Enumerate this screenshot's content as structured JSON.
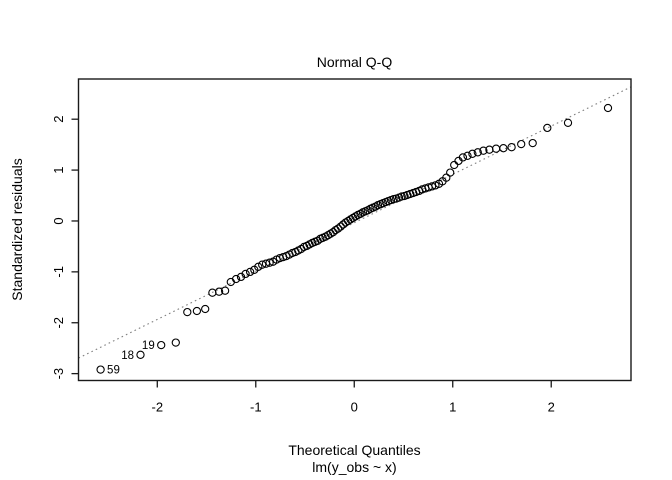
{
  "chart_data": {
    "type": "scatter",
    "title": "Normal Q-Q",
    "xlabel": "Theoretical Quantiles",
    "xlabel_sub": "lm(y_obs ~ x)",
    "ylabel": "Standardized residuals",
    "xlim": [
      -2.8,
      2.81
    ],
    "ylim": [
      -3.135,
      2.79
    ],
    "xticks": [
      -2,
      -1,
      0,
      1,
      2
    ],
    "yticks": [
      -3,
      -2,
      -1,
      0,
      1,
      2
    ],
    "grid": false,
    "legend": null,
    "marker": {
      "shape": "open-circle",
      "radius": 3.6,
      "color": "#000000"
    },
    "reference_line": {
      "slope": 0.95,
      "intercept": -0.035,
      "style": "dotted",
      "color": "#7f7f7f"
    },
    "points": {
      "x": [
        -2.576,
        -2.17,
        -1.96,
        -1.812,
        -1.695,
        -1.598,
        -1.514,
        -1.44,
        -1.372,
        -1.311,
        -1.254,
        -1.2,
        -1.15,
        -1.103,
        -1.058,
        -1.015,
        -0.974,
        -0.935,
        -0.896,
        -0.86,
        -0.824,
        -0.789,
        -0.755,
        -0.722,
        -0.69,
        -0.659,
        -0.628,
        -0.598,
        -0.568,
        -0.539,
        -0.51,
        -0.482,
        -0.454,
        -0.426,
        -0.399,
        -0.372,
        -0.345,
        -0.319,
        -0.292,
        -0.266,
        -0.24,
        -0.215,
        -0.189,
        -0.164,
        -0.138,
        -0.113,
        -0.088,
        -0.063,
        -0.038,
        -0.013,
        0.013,
        0.038,
        0.063,
        0.088,
        0.113,
        0.138,
        0.164,
        0.189,
        0.215,
        0.24,
        0.266,
        0.292,
        0.319,
        0.345,
        0.372,
        0.399,
        0.426,
        0.454,
        0.482,
        0.51,
        0.539,
        0.568,
        0.598,
        0.628,
        0.659,
        0.69,
        0.722,
        0.755,
        0.789,
        0.824,
        0.86,
        0.896,
        0.935,
        0.974,
        1.015,
        1.058,
        1.103,
        1.15,
        1.2,
        1.254,
        1.311,
        1.372,
        1.44,
        1.514,
        1.598,
        1.695,
        1.812,
        1.96,
        2.17,
        2.576
      ],
      "y": [
        -2.92,
        -2.63,
        -2.44,
        -2.39,
        -1.79,
        -1.77,
        -1.73,
        -1.41,
        -1.39,
        -1.37,
        -1.2,
        -1.14,
        -1.1,
        -1.04,
        -1.0,
        -0.96,
        -0.9,
        -0.86,
        -0.84,
        -0.82,
        -0.8,
        -0.76,
        -0.73,
        -0.71,
        -0.69,
        -0.66,
        -0.63,
        -0.61,
        -0.58,
        -0.55,
        -0.51,
        -0.49,
        -0.46,
        -0.43,
        -0.41,
        -0.39,
        -0.35,
        -0.33,
        -0.31,
        -0.28,
        -0.25,
        -0.22,
        -0.18,
        -0.15,
        -0.11,
        -0.07,
        -0.03,
        0.0,
        0.03,
        0.06,
        0.09,
        0.12,
        0.14,
        0.17,
        0.19,
        0.21,
        0.24,
        0.26,
        0.28,
        0.31,
        0.33,
        0.35,
        0.37,
        0.39,
        0.41,
        0.43,
        0.44,
        0.46,
        0.48,
        0.49,
        0.51,
        0.53,
        0.55,
        0.57,
        0.59,
        0.62,
        0.64,
        0.66,
        0.68,
        0.7,
        0.73,
        0.78,
        0.85,
        0.95,
        1.1,
        1.18,
        1.25,
        1.28,
        1.32,
        1.35,
        1.38,
        1.4,
        1.42,
        1.43,
        1.45,
        1.51,
        1.53,
        1.83,
        1.93,
        2.22
      ]
    },
    "outlier_labels": [
      {
        "text": "59",
        "point_index": 0,
        "side": "right"
      },
      {
        "text": "18",
        "point_index": 1,
        "side": "left"
      },
      {
        "text": "19",
        "point_index": 2,
        "side": "left"
      }
    ]
  }
}
